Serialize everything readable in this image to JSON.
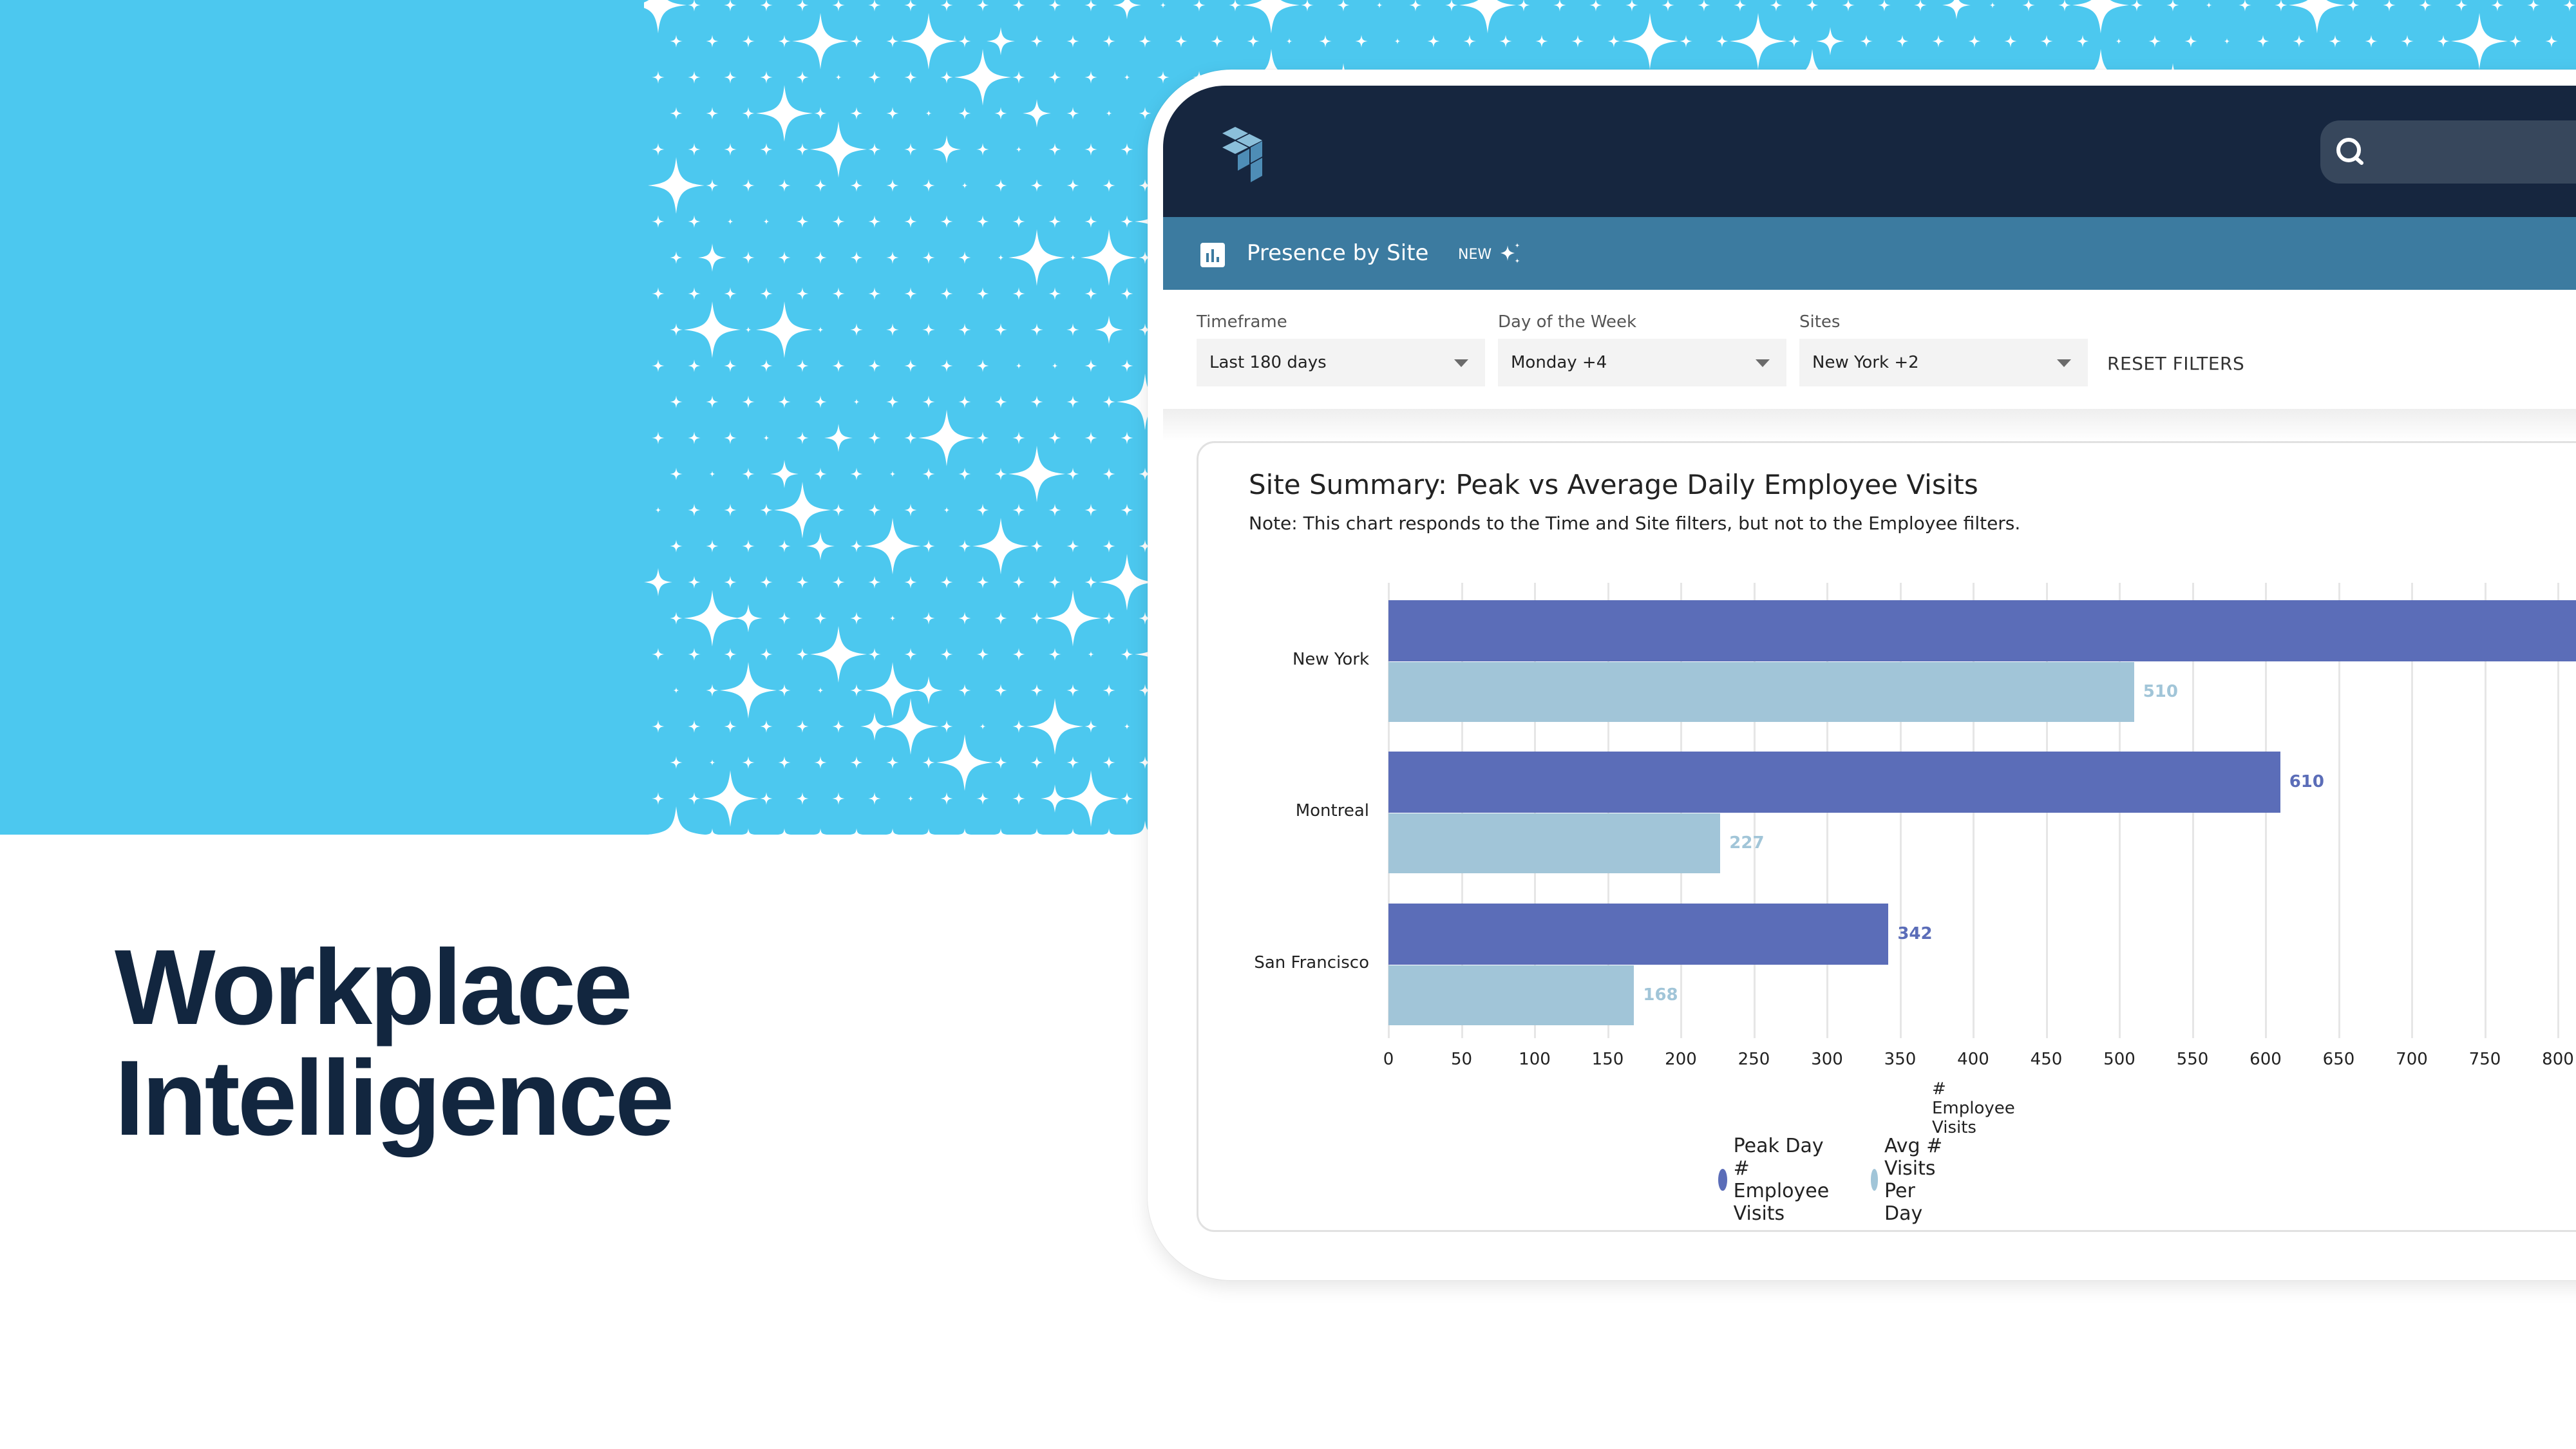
{
  "hero": {
    "heading_line1": "Workplace",
    "heading_line2": "Intelligence",
    "band_color": "#4CC8EF",
    "heading_color": "#12263F"
  },
  "app": {
    "topbar": {
      "logo": "stacked-cubes-logo",
      "search_icon": "search-icon",
      "search_placeholder": ""
    },
    "subbar": {
      "page_icon": "bar-chart-icon",
      "title": "Presence by Site",
      "badge": "NEW",
      "badge_icon": "sparkle-icon"
    },
    "filters": [
      {
        "label": "Timeframe",
        "value": "Last 180 days"
      },
      {
        "label": "Day of the Week",
        "value": "Monday +4"
      },
      {
        "label": "Sites",
        "value": "New York +2"
      }
    ],
    "reset_label": "RESET FILTERS"
  },
  "chart_card": {
    "title": "Site Summary: Peak vs Average Daily Employee Visits",
    "note": "Note: This chart responds to the Time and Site filters, but not to the Employee filters."
  },
  "chart_data": {
    "type": "bar",
    "orientation": "horizontal",
    "title": "Site Summary: Peak vs Average Daily Employee Visits",
    "categories": [
      "New York",
      "Montreal",
      "San Francisco"
    ],
    "series": [
      {
        "name": "Peak Day # Employee Visits",
        "color": "#5B6DB8",
        "values": [
          null,
          610,
          342
        ],
        "labels": [
          "",
          "610",
          "342"
        ],
        "note": "New York peak bar extends beyond visible area (>800)"
      },
      {
        "name": "Avg # Visits Per Day",
        "color": "#A1C5D8",
        "values": [
          510,
          227,
          168
        ],
        "labels": [
          "510",
          "227",
          "168"
        ]
      }
    ],
    "xlabel": "# Employee Visits",
    "ylabel": "",
    "xticks": [
      "0",
      "50",
      "100",
      "150",
      "200",
      "250",
      "300",
      "350",
      "400",
      "450",
      "500",
      "550",
      "600",
      "650",
      "700",
      "750",
      "800"
    ],
    "xlim": [
      0,
      800
    ],
    "grid": true,
    "legend_position": "bottom"
  }
}
